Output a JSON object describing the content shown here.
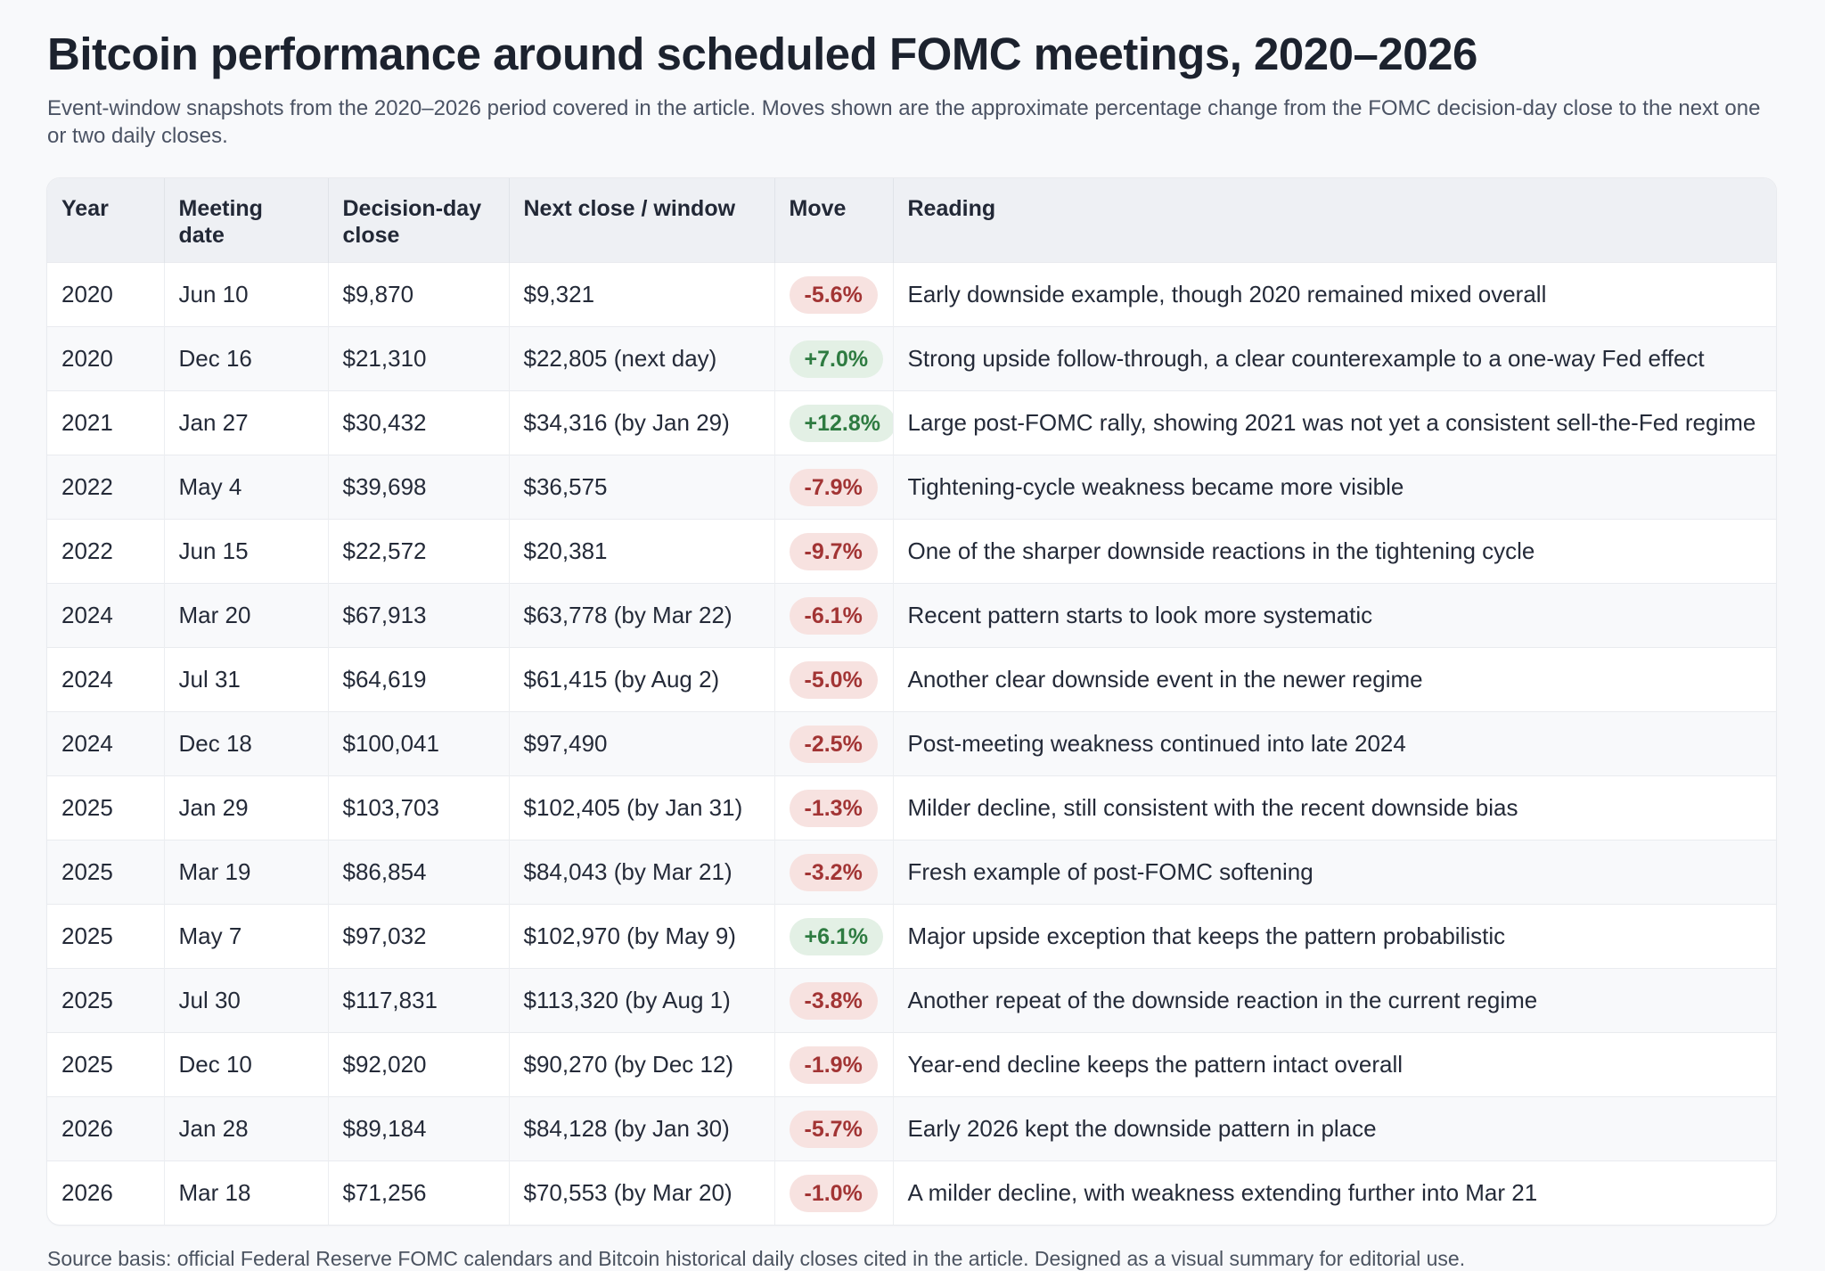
{
  "page": {
    "title": "Bitcoin performance around scheduled FOMC meetings, 2020–2026",
    "subtitle": "Event-window snapshots from the 2020–2026 period covered in the article. Moves shown are the approximate percentage change from the FOMC decision-day close to the next one or two daily closes.",
    "footer": "Source basis: official Federal Reserve FOMC calendars and Bitcoin historical daily closes cited in the article. Designed as a visual summary for editorial use."
  },
  "colors": {
    "page_background": "#f8f9fb",
    "header_background": "#eef0f4",
    "row_stripe": "#f8f9fb",
    "border": "#e9ebef",
    "title_text": "#1c222e",
    "body_text": "#242a38",
    "badge_negative_bg": "#f7e2e0",
    "badge_negative_text": "#a23434",
    "badge_positive_bg": "#e3f0e5",
    "badge_positive_text": "#2e7b41"
  },
  "chart_data": {
    "type": "table",
    "title": "Bitcoin performance around scheduled FOMC meetings, 2020–2026",
    "columns": [
      "Year",
      "Meeting date",
      "Decision-day close",
      "Next close / window",
      "Move",
      "Reading"
    ],
    "rows": [
      {
        "year": "2020",
        "meeting_date": "Jun 10",
        "decision_close": "$9,870",
        "next_close": "$9,321",
        "move": "-5.6%",
        "move_value": -5.6,
        "direction": "down",
        "reading": "Early downside example, though 2020 remained mixed overall"
      },
      {
        "year": "2020",
        "meeting_date": "Dec 16",
        "decision_close": "$21,310",
        "next_close": "$22,805 (next day)",
        "move": "+7.0%",
        "move_value": 7.0,
        "direction": "up",
        "reading": "Strong upside follow-through, a clear counterexample to a one-way Fed effect"
      },
      {
        "year": "2021",
        "meeting_date": "Jan 27",
        "decision_close": "$30,432",
        "next_close": "$34,316 (by Jan 29)",
        "move": "+12.8%",
        "move_value": 12.8,
        "direction": "up",
        "reading": "Large post-FOMC rally, showing 2021 was not yet a consistent sell-the-Fed regime"
      },
      {
        "year": "2022",
        "meeting_date": "May 4",
        "decision_close": "$39,698",
        "next_close": "$36,575",
        "move": "-7.9%",
        "move_value": -7.9,
        "direction": "down",
        "reading": "Tightening-cycle weakness became more visible"
      },
      {
        "year": "2022",
        "meeting_date": "Jun 15",
        "decision_close": "$22,572",
        "next_close": "$20,381",
        "move": "-9.7%",
        "move_value": -9.7,
        "direction": "down",
        "reading": "One of the sharper downside reactions in the tightening cycle"
      },
      {
        "year": "2024",
        "meeting_date": "Mar 20",
        "decision_close": "$67,913",
        "next_close": "$63,778 (by Mar 22)",
        "move": "-6.1%",
        "move_value": -6.1,
        "direction": "down",
        "reading": "Recent pattern starts to look more systematic"
      },
      {
        "year": "2024",
        "meeting_date": "Jul 31",
        "decision_close": "$64,619",
        "next_close": "$61,415 (by Aug 2)",
        "move": "-5.0%",
        "move_value": -5.0,
        "direction": "down",
        "reading": "Another clear downside event in the newer regime"
      },
      {
        "year": "2024",
        "meeting_date": "Dec 18",
        "decision_close": "$100,041",
        "next_close": "$97,490",
        "move": "-2.5%",
        "move_value": -2.5,
        "direction": "down",
        "reading": "Post-meeting weakness continued into late 2024"
      },
      {
        "year": "2025",
        "meeting_date": "Jan 29",
        "decision_close": "$103,703",
        "next_close": "$102,405 (by Jan 31)",
        "move": "-1.3%",
        "move_value": -1.3,
        "direction": "down",
        "reading": "Milder decline, still consistent with the recent downside bias"
      },
      {
        "year": "2025",
        "meeting_date": "Mar 19",
        "decision_close": "$86,854",
        "next_close": "$84,043 (by Mar 21)",
        "move": "-3.2%",
        "move_value": -3.2,
        "direction": "down",
        "reading": "Fresh example of post-FOMC softening"
      },
      {
        "year": "2025",
        "meeting_date": "May 7",
        "decision_close": "$97,032",
        "next_close": "$102,970 (by May 9)",
        "move": "+6.1%",
        "move_value": 6.1,
        "direction": "up",
        "reading": "Major upside exception that keeps the pattern probabilistic"
      },
      {
        "year": "2025",
        "meeting_date": "Jul 30",
        "decision_close": "$117,831",
        "next_close": "$113,320 (by Aug 1)",
        "move": "-3.8%",
        "move_value": -3.8,
        "direction": "down",
        "reading": "Another repeat of the downside reaction in the current regime"
      },
      {
        "year": "2025",
        "meeting_date": "Dec 10",
        "decision_close": "$92,020",
        "next_close": "$90,270 (by Dec 12)",
        "move": "-1.9%",
        "move_value": -1.9,
        "direction": "down",
        "reading": "Year-end decline keeps the pattern intact overall"
      },
      {
        "year": "2026",
        "meeting_date": "Jan 28",
        "decision_close": "$89,184",
        "next_close": "$84,128 (by Jan 30)",
        "move": "-5.7%",
        "move_value": -5.7,
        "direction": "down",
        "reading": "Early 2026 kept the downside pattern in place"
      },
      {
        "year": "2026",
        "meeting_date": "Mar 18",
        "decision_close": "$71,256",
        "next_close": "$70,553 (by Mar 20)",
        "move": "-1.0%",
        "move_value": -1.0,
        "direction": "down",
        "reading": "A milder decline, with weakness extending further into Mar 21"
      }
    ]
  }
}
